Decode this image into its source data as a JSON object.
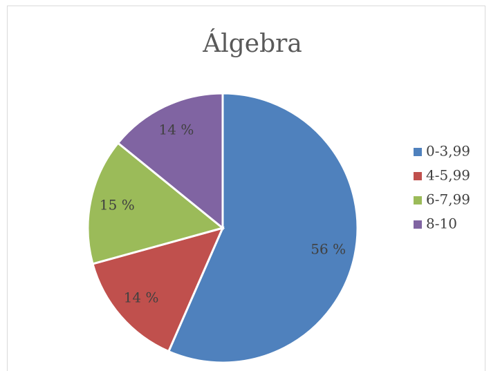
{
  "chart_data": {
    "type": "pie",
    "title": "Álgebra",
    "categories": [
      "0-3,99",
      "4-5,99",
      "6-7,99",
      "8-10"
    ],
    "values": [
      56,
      14,
      15,
      14
    ],
    "value_labels": [
      "56 %",
      "14 %",
      "15 %",
      "14 %"
    ],
    "colors": [
      "#4f81bd",
      "#c0504d",
      "#9bbb59",
      "#8064a2"
    ],
    "legend": "right"
  }
}
